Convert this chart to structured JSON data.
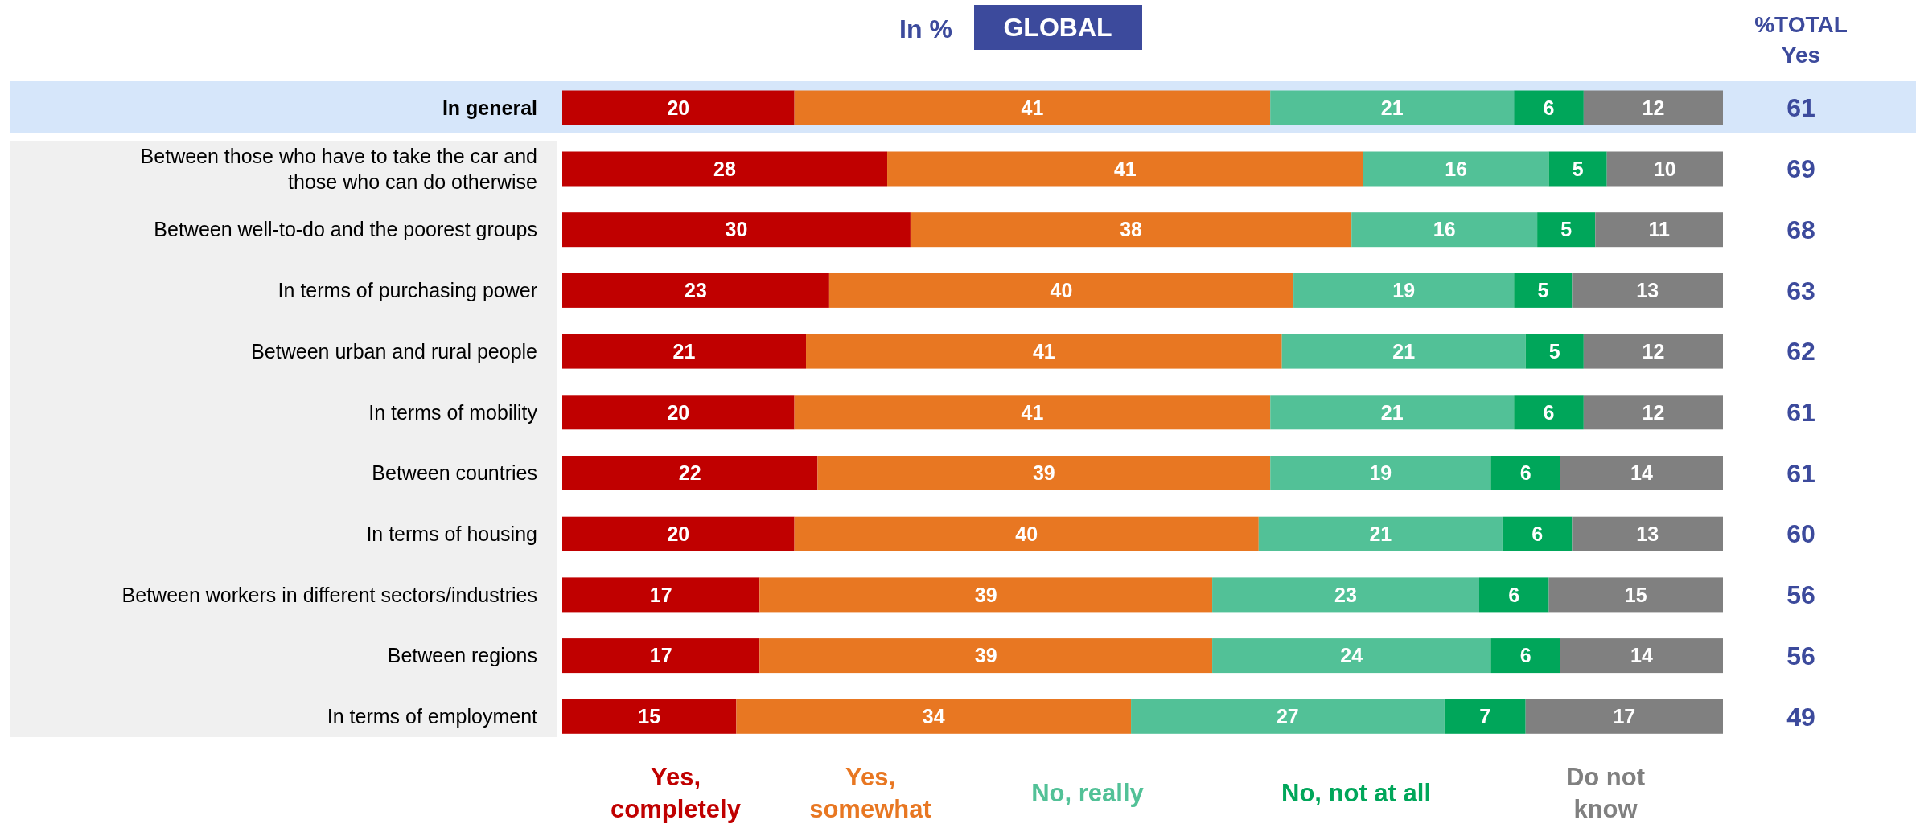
{
  "chart_data": {
    "type": "bar",
    "orientation": "horizontal",
    "stacked": true,
    "title": "In %",
    "subtitle": "GLOBAL",
    "annotations": [
      "%TOTAL Yes",
      "61",
      "69",
      "68",
      "63",
      "62",
      "61",
      "61",
      "60",
      "56",
      "56",
      "49"
    ],
    "bands": [
      {
        "axis": "y",
        "from": "In general",
        "to": "In general",
        "color": "#d6e6fa"
      }
    ],
    "categories": [
      "In general",
      "Between those who have to take the car and those who can do otherwise",
      "Between well-to-do and the poorest groups",
      "In terms of purchasing power",
      "Between urban and rural people",
      "In terms of mobility",
      "Between countries",
      "In terms of housing",
      "Between workers in different sectors/industries",
      "Between regions",
      "In terms of employment"
    ],
    "series": [
      {
        "name": "Yes, completely",
        "color": "#c00000",
        "values": [
          20,
          28,
          30,
          23,
          21,
          20,
          22,
          20,
          17,
          17,
          15
        ]
      },
      {
        "name": "Yes, somewhat",
        "color": "#e87722",
        "values": [
          41,
          41,
          38,
          40,
          41,
          41,
          39,
          40,
          39,
          39,
          34
        ]
      },
      {
        "name": "No, really",
        "color": "#52c197",
        "values": [
          21,
          16,
          16,
          19,
          21,
          21,
          19,
          21,
          23,
          24,
          27
        ]
      },
      {
        "name": "No, not at all",
        "color": "#00a65a",
        "values": [
          6,
          5,
          5,
          5,
          5,
          6,
          6,
          6,
          6,
          6,
          7
        ]
      },
      {
        "name": "Do not know",
        "color": "#808080",
        "values": [
          12,
          10,
          11,
          13,
          12,
          12,
          14,
          13,
          15,
          14,
          17
        ]
      }
    ],
    "xlim": [
      0,
      100
    ],
    "data_labels": true,
    "tick_labels": "y",
    "legend": "bottom"
  }
}
